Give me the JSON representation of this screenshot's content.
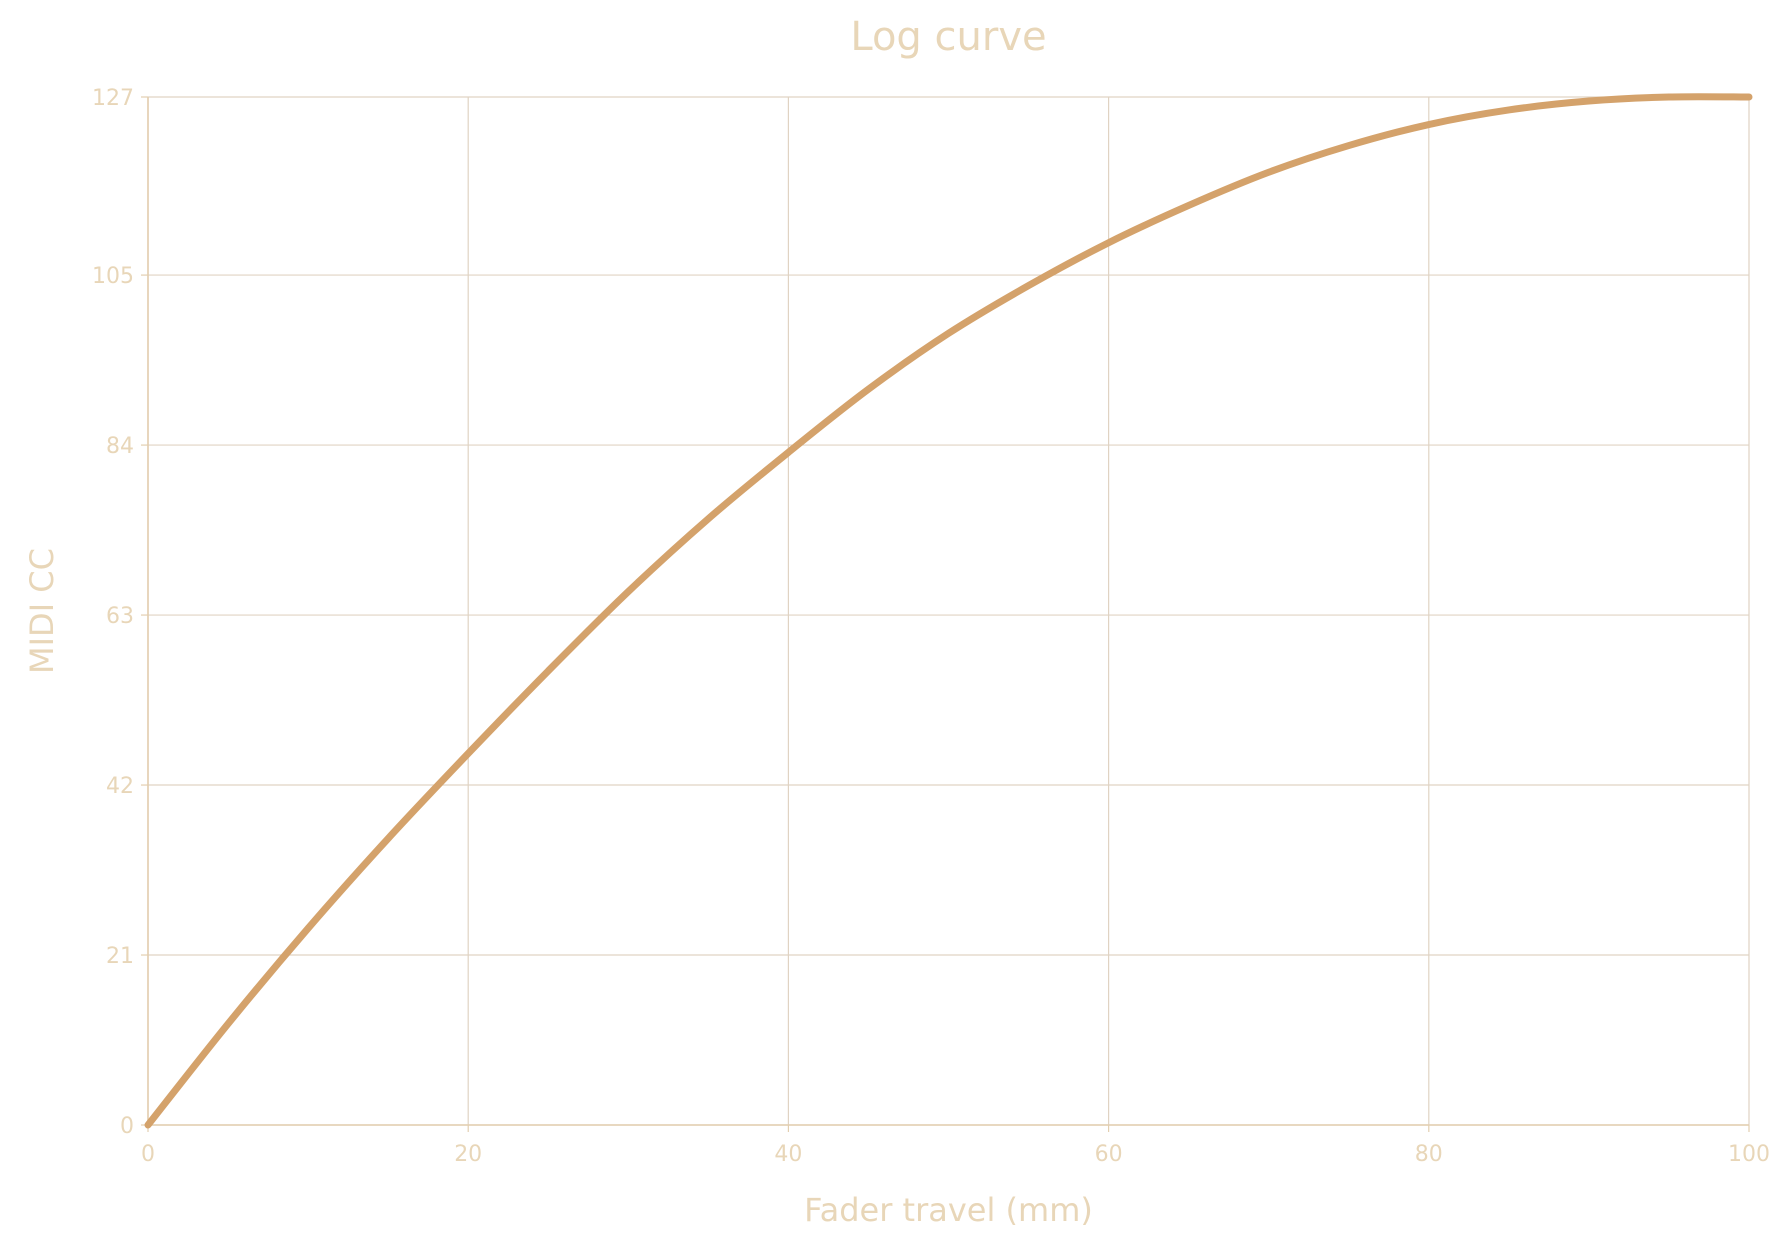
{
  "colors": {
    "text": "#e8d6b8",
    "grid": "#e0d3c3",
    "axis": "#e3cfb0",
    "line": "#d4a26b",
    "background": "#ffffff"
  },
  "chart_data": {
    "type": "line",
    "title": "Log curve",
    "xlabel": "Fader travel (mm)",
    "ylabel": "MIDI CC",
    "xlim": [
      0,
      100
    ],
    "ylim": [
      0,
      127
    ],
    "xticks": [
      0,
      20,
      40,
      60,
      80,
      100
    ],
    "yticks": [
      0,
      21,
      42,
      63,
      84,
      105,
      127
    ],
    "grid": true,
    "series": [
      {
        "x": [
          0,
          5,
          10,
          15,
          20,
          25,
          30,
          35,
          40,
          45,
          50,
          55,
          60,
          65,
          70,
          75,
          80,
          85,
          90,
          95,
          100
        ],
        "y": [
          0,
          12.5,
          24.3,
          35.4,
          45.9,
          56.1,
          65.9,
          74.9,
          83.1,
          90.9,
          97.8,
          103.7,
          109.0,
          113.6,
          117.7,
          121.0,
          123.6,
          125.4,
          126.5,
          127.0,
          127.0
        ]
      }
    ]
  }
}
